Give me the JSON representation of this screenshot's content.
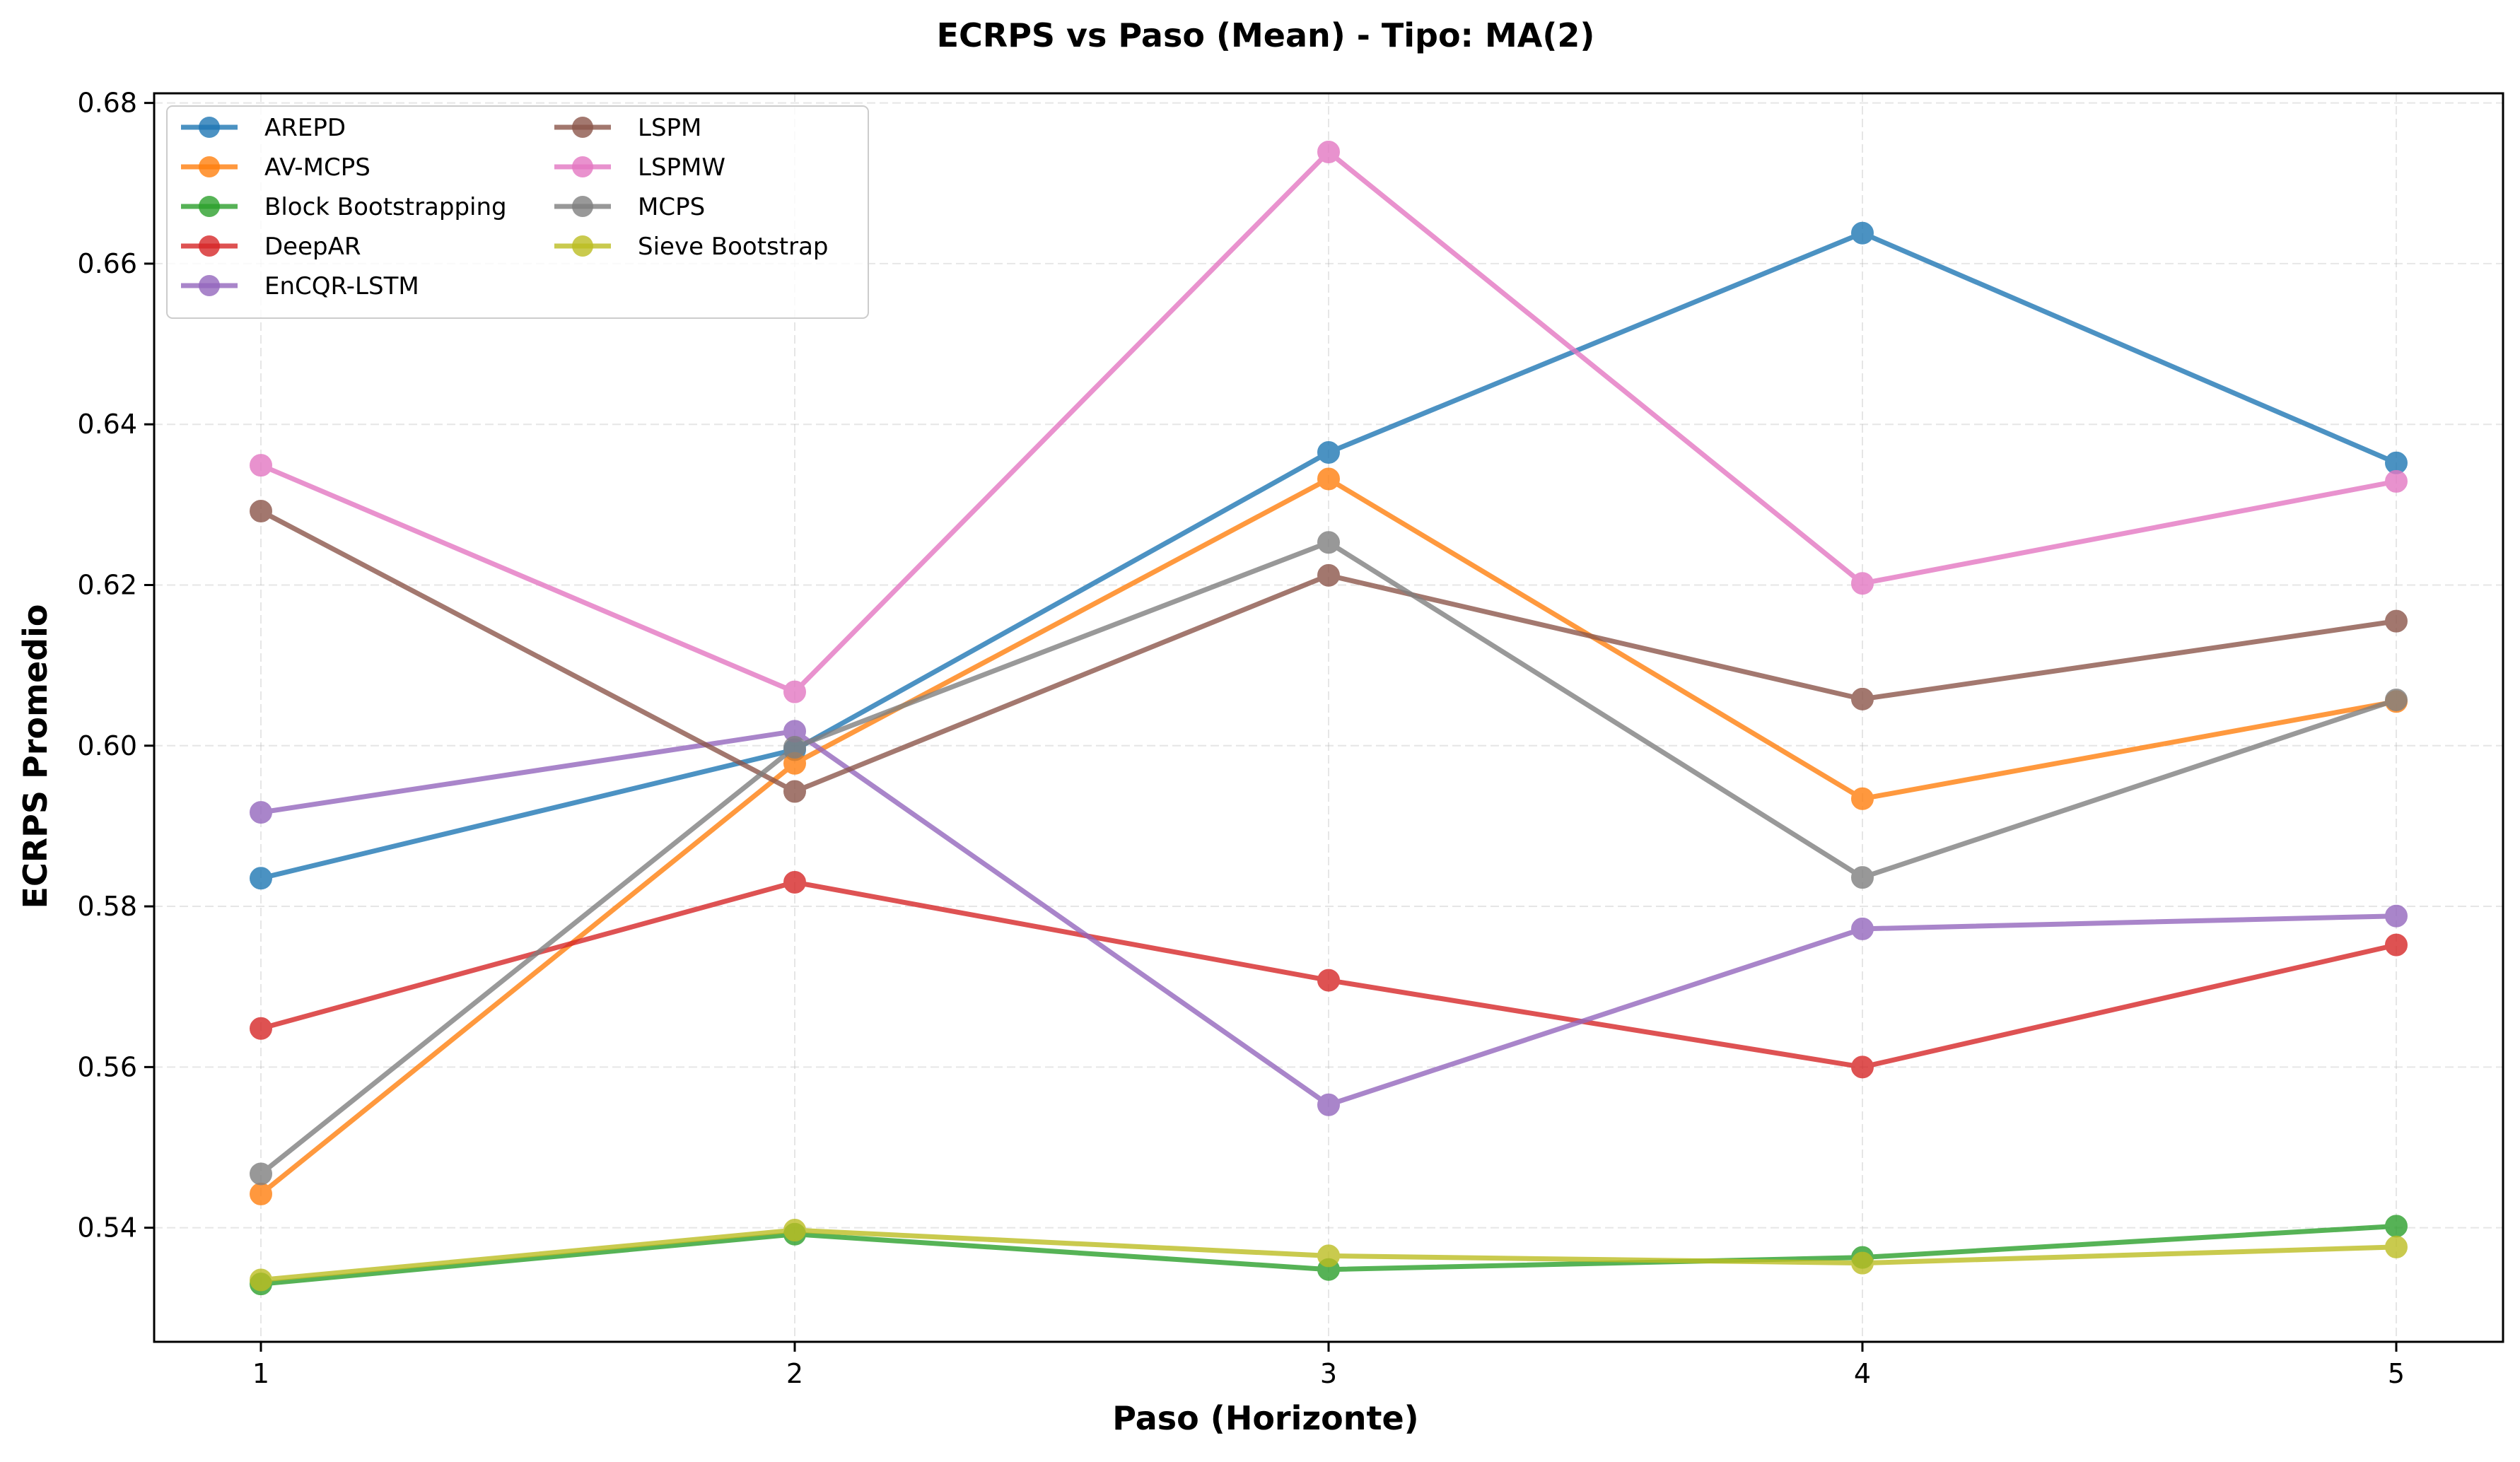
{
  "chart_data": {
    "type": "line",
    "title": "ECRPS vs Paso (Mean) - Tipo: MA(2)",
    "xlabel": "Paso (Horizonte)",
    "ylabel": "ECRPS Promedio",
    "x": [
      1,
      2,
      3,
      4,
      5
    ],
    "xticks": [
      "1",
      "2",
      "3",
      "4",
      "5"
    ],
    "xlim": [
      0.8,
      5.2
    ],
    "ylim": [
      0.5258,
      0.6812
    ],
    "yticks": [
      "0.54",
      "0.56",
      "0.58",
      "0.60",
      "0.62",
      "0.64",
      "0.66",
      "0.68"
    ],
    "ytick_values": [
      0.54,
      0.56,
      0.58,
      0.6,
      0.62,
      0.64,
      0.66,
      0.68
    ],
    "grid": true,
    "legend_position": "upper-left",
    "legend_columns": 2,
    "series": [
      {
        "name": "AREPD",
        "color": "#1f77b4",
        "values": [
          0.5835,
          0.5995,
          0.6365,
          0.6638,
          0.6352
        ]
      },
      {
        "name": "AV-MCPS",
        "color": "#ff7f0e",
        "values": [
          0.5442,
          0.5978,
          0.6332,
          0.5934,
          0.6055
        ]
      },
      {
        "name": "Block Bootstrapping",
        "color": "#2ca02c",
        "values": [
          0.533,
          0.5392,
          0.5348,
          0.5363,
          0.5402
        ]
      },
      {
        "name": "DeepAR",
        "color": "#d62728",
        "values": [
          0.5648,
          0.583,
          0.5708,
          0.56,
          0.5752
        ]
      },
      {
        "name": "EnCQR-LSTM",
        "color": "#9467bd",
        "values": [
          0.5917,
          0.6018,
          0.5553,
          0.5772,
          0.5788
        ]
      },
      {
        "name": "LSPM",
        "color": "#8c564b",
        "values": [
          0.6292,
          0.5943,
          0.6212,
          0.6058,
          0.6155
        ]
      },
      {
        "name": "LSPMW",
        "color": "#e377c2",
        "values": [
          0.6349,
          0.6067,
          0.6739,
          0.6202,
          0.6329
        ]
      },
      {
        "name": "MCPS",
        "color": "#7f7f7f",
        "values": [
          0.5467,
          0.5998,
          0.6253,
          0.5836,
          0.6057
        ]
      },
      {
        "name": "Sieve Bootstrap",
        "color": "#bcbd22",
        "values": [
          0.5335,
          0.5397,
          0.5365,
          0.5356,
          0.5376
        ]
      }
    ]
  }
}
